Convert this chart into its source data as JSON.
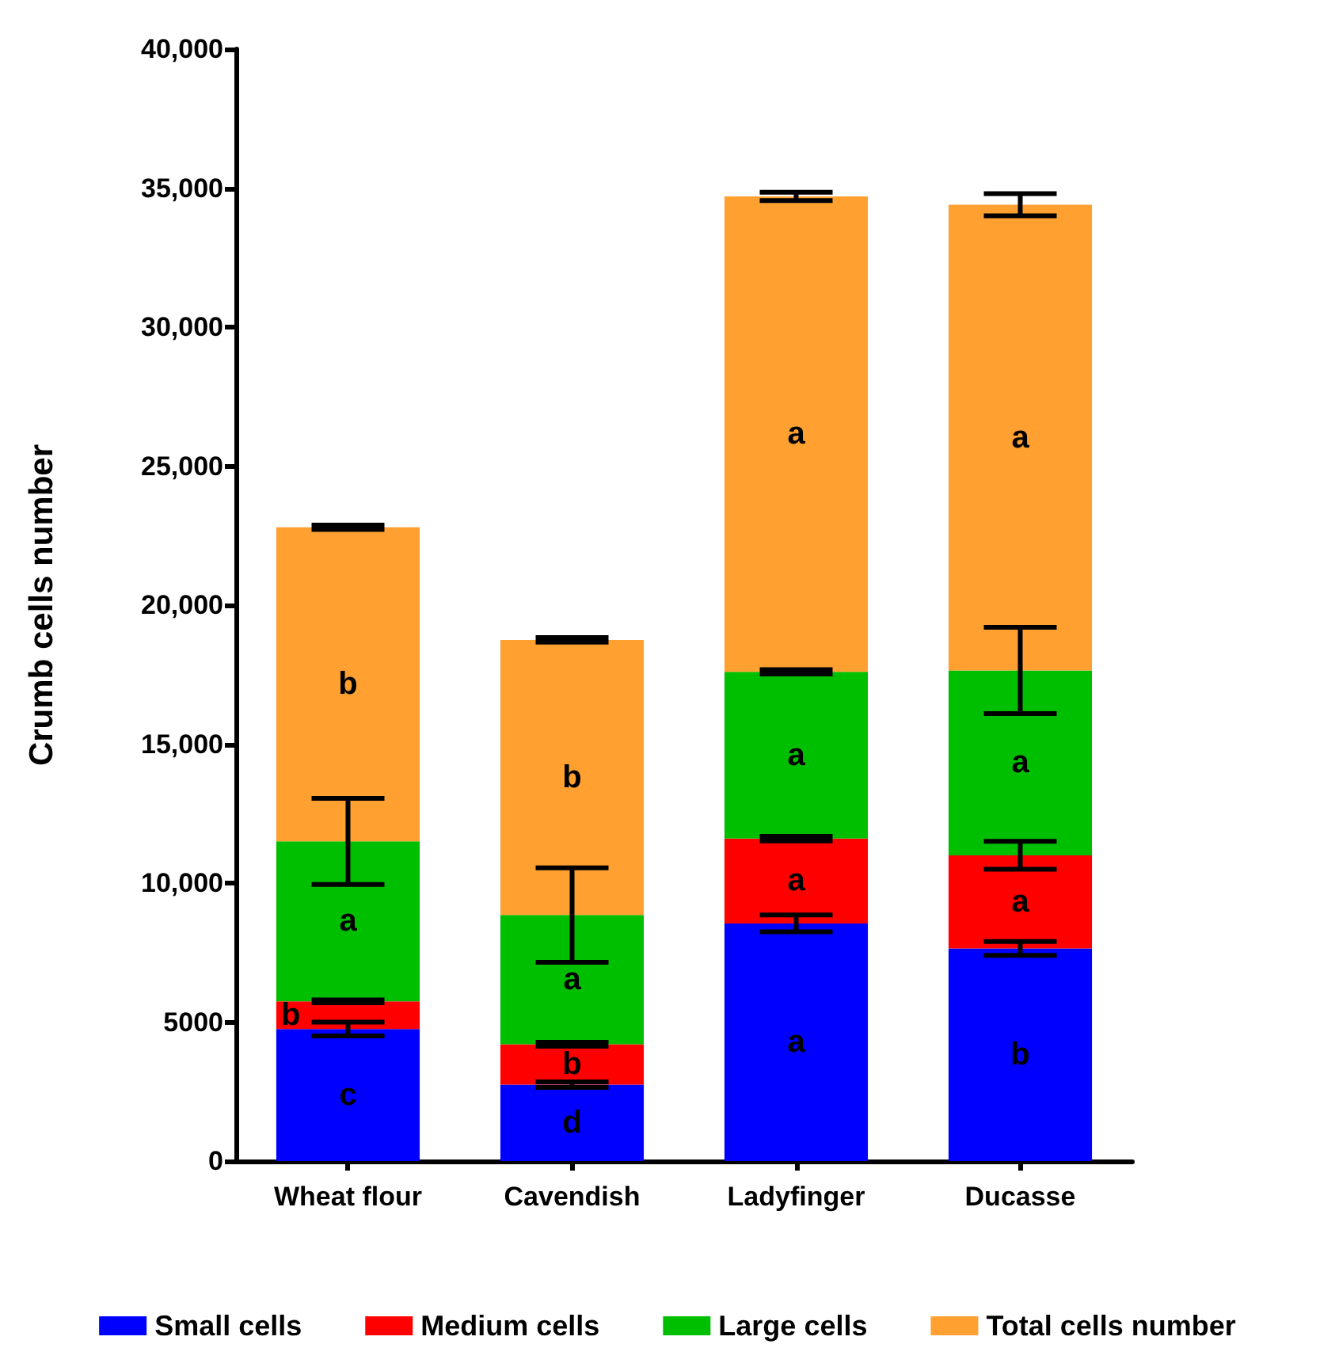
{
  "chart_data": {
    "type": "bar",
    "stacked": true,
    "ylabel": "Crumb cells number",
    "categories": [
      "Wheat flour",
      "Cavendish",
      "Ladyfinger",
      "Ducasse"
    ],
    "ylim": [
      0,
      40000
    ],
    "yticks": [
      0,
      5000,
      {
        "value": 10000,
        "label": "10,000"
      },
      {
        "value": 15000,
        "label": "15,000"
      },
      {
        "value": 20000,
        "label": "20,000"
      },
      {
        "value": 25000,
        "label": "25,000"
      },
      {
        "value": 30000,
        "label": "30,000"
      },
      {
        "value": 35000,
        "label": "35,000"
      },
      {
        "value": 40000,
        "label": "40,000"
      }
    ],
    "grid": false,
    "legend": "bottom",
    "series": [
      {
        "name": "Small cells",
        "color": "#0000ff",
        "values": [
          4750,
          2750,
          8550,
          7650
        ],
        "errors": [
          250,
          100,
          300,
          250
        ],
        "value_labels": [
          "c",
          "d",
          "a",
          "b"
        ]
      },
      {
        "name": "Medium cells",
        "color": "#ff0000",
        "values": [
          1000,
          1450,
          3050,
          3350
        ],
        "errors": [
          50,
          70,
          80,
          500
        ],
        "value_labels": [
          "b",
          "b",
          "a",
          "a"
        ]
      },
      {
        "name": "Large cells",
        "color": "#00bf00",
        "values": [
          5750,
          4650,
          6000,
          6650
        ],
        "errors": [
          1550,
          1700,
          80,
          1550
        ],
        "value_labels": [
          "a",
          "a",
          "a",
          "a"
        ]
      },
      {
        "name": "Total cells number",
        "color": "#ffa030",
        "values": [
          11300,
          9900,
          17100,
          16750
        ],
        "errors": [
          80,
          80,
          150,
          400
        ],
        "value_labels": [
          "b",
          "b",
          "a",
          "a"
        ]
      }
    ]
  }
}
